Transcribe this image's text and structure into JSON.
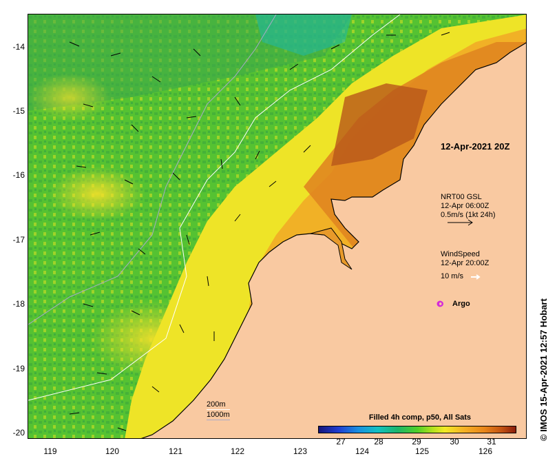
{
  "title_date": "12-Apr-2021 20Z",
  "credit": "© IMOS 15-Apr-2021 12:57 Hobart",
  "x_ticks": [
    "119",
    "120",
    "121",
    "122",
    "123",
    "124",
    "125",
    "126"
  ],
  "y_ticks": [
    "-14",
    "-15",
    "-16",
    "-17",
    "-18",
    "-19",
    "-20"
  ],
  "current_legend": {
    "line1": "NRT00 GSL",
    "line2": "12-Apr 06:00Z",
    "line3": "0.5m/s (1kt 24h)"
  },
  "wind_legend": {
    "line1": "WindSpeed",
    "line2": "12-Apr 20:00Z",
    "line3": "10 m/s"
  },
  "argo_label": "Argo",
  "depth_legend": {
    "contour1": "200m",
    "contour2": "1000m"
  },
  "colorbar": {
    "title": "Filled 4h comp, p50, All Sats",
    "labels": [
      "27",
      "28",
      "29",
      "30",
      "31"
    ]
  },
  "colors": {
    "land": "#f9c9a1",
    "sst_low": "#1f3dd1",
    "sst_high": "#8a1d0c",
    "argo": "#d42bd8"
  },
  "chart_data": {
    "type": "heatmap",
    "title": "12-Apr-2021 20Z",
    "xlim": [
      118.6,
      126.7
    ],
    "ylim": [
      -20.1,
      -13.5
    ],
    "colorbar_range": [
      26.2,
      31.6
    ],
    "colorbar_ticks": [
      27,
      28,
      29,
      30,
      31
    ],
    "argo_float": {
      "lon": 125.2,
      "lat": -18.0
    }
  }
}
